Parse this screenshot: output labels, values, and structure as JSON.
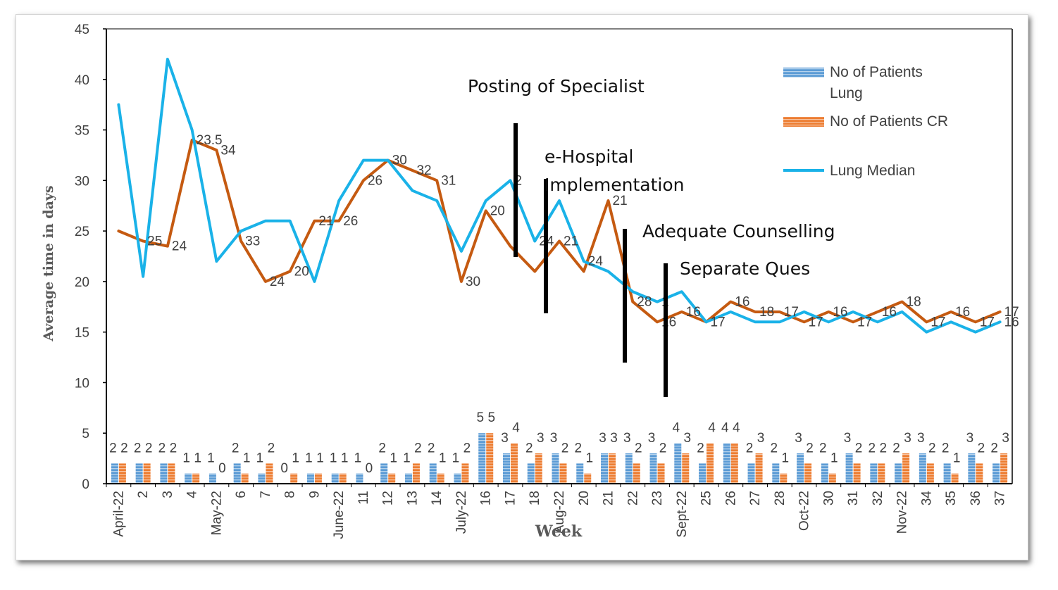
{
  "chart_data": {
    "type": "bar",
    "title": "",
    "xlabel": "Week",
    "ylabel": "Average time in days",
    "ylim": [
      0,
      45
    ],
    "yticks": [
      0,
      5,
      10,
      15,
      20,
      25,
      30,
      35,
      40,
      45
    ],
    "categories": [
      "April-22",
      "2",
      "3",
      "4",
      "May-22",
      "6",
      "7",
      "8",
      "9",
      "June-22",
      "11",
      "12",
      "13",
      "14",
      "July-22",
      "16",
      "17",
      "18",
      "Aug-22",
      "20",
      "21",
      "22",
      "23",
      "Sept-22",
      "25",
      "26",
      "27",
      "28",
      "Oct-22",
      "30",
      "31",
      "32",
      "Nov-22",
      "34",
      "35",
      "36",
      "37"
    ],
    "series": [
      {
        "name": "No of Patients Lung",
        "kind": "bar",
        "color": "#5b9bd5",
        "values": [
          2,
          2,
          2,
          1,
          1,
          2,
          1,
          0,
          1,
          1,
          1,
          2,
          1,
          2,
          1,
          5,
          3,
          2,
          3,
          2,
          3,
          3,
          3,
          4,
          2,
          4,
          2,
          2,
          3,
          2,
          3,
          2,
          2,
          3,
          2,
          3,
          2
        ]
      },
      {
        "name": "No of Patients CR",
        "kind": "bar",
        "color": "#ed7d31",
        "values": [
          2,
          2,
          2,
          1,
          0,
          1,
          2,
          1,
          1,
          1,
          0,
          1,
          2,
          1,
          2,
          5,
          4,
          3,
          2,
          1,
          3,
          2,
          2,
          3,
          4,
          4,
          3,
          1,
          2,
          1,
          2,
          2,
          3,
          2,
          1,
          2,
          3
        ]
      },
      {
        "name": "",
        "kind": "line",
        "color": "#c55a11",
        "values": [
          25,
          24,
          23.5,
          34,
          33,
          24,
          20,
          21,
          26,
          26,
          30,
          32,
          31,
          30,
          20,
          27,
          23.5,
          21,
          24,
          21,
          28,
          18,
          16,
          17,
          16,
          18,
          17,
          17,
          16,
          17,
          16,
          17,
          18,
          16,
          17,
          16,
          17
        ],
        "labels": [
          "",
          "25",
          "24",
          "23.5",
          "34",
          "33",
          "24",
          "20",
          "21",
          "26",
          "26",
          "30",
          "32",
          "31",
          "30",
          "20",
          "",
          "",
          "21",
          "",
          "21",
          "28",
          "16",
          "16",
          "17",
          "16",
          "18",
          "17",
          "17",
          "16",
          "17",
          "16",
          "18",
          "17",
          "16",
          "17",
          "17"
        ]
      },
      {
        "name": "Lung Median",
        "kind": "line",
        "color": "#1ab2e8",
        "values": [
          37.5,
          20.5,
          42,
          35,
          22,
          25,
          26,
          26,
          20,
          28,
          32,
          32,
          29,
          28,
          23,
          28,
          30,
          24,
          28,
          22,
          21,
          19,
          18,
          19,
          16,
          17,
          16,
          16,
          17,
          16,
          17,
          16,
          17,
          15,
          16,
          15,
          16
        ],
        "labels": [
          "",
          "",
          "",
          "",
          "",
          "",
          "",
          "",
          "",
          "",
          "",
          "",
          "",
          "",
          "",
          "",
          "2",
          "24",
          "",
          "24",
          "",
          "",
          "1",
          "",
          "",
          "",
          "",
          "",
          "",
          "",
          "",
          "",
          "",
          "",
          "",
          "",
          "16"
        ]
      }
    ],
    "annotations": [
      {
        "text": "Posting of Specialist"
      },
      {
        "text": "e-Hospital"
      },
      {
        "text": "Implementation"
      },
      {
        "text": "Adequate Counselling"
      },
      {
        "text": "Separate Ques"
      }
    ],
    "legend": {
      "placement": "top-right",
      "entries": [
        "No of Patients",
        "Lung",
        "No of Patients CR",
        "Lung Median"
      ]
    },
    "grid": false
  }
}
